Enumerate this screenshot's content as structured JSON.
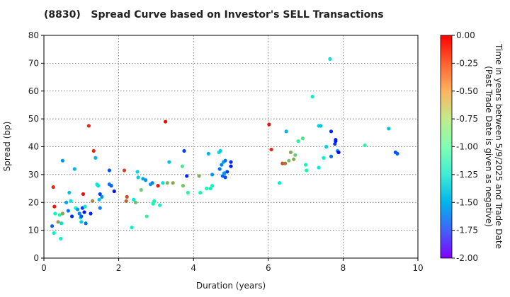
{
  "chart_data": {
    "type": "scatter",
    "title": "(8830)   Spread Curve based on Investor's SELL Transactions",
    "xlabel": "Duration (years)",
    "ylabel": "Spread (bp)",
    "xlim": [
      0,
      10
    ],
    "ylim": [
      0,
      80
    ],
    "x_ticks": [
      0,
      2,
      4,
      6,
      8,
      10
    ],
    "y_ticks": [
      0,
      10,
      20,
      30,
      40,
      50,
      60,
      70,
      80
    ],
    "grid": true,
    "colorbar": {
      "label_line1": "Time in years between 5/9/2025 and Trade Date",
      "label_line2": "(Past Trade Date is given as negative)",
      "min": -2.0,
      "max": 0.0,
      "ticks": [
        "0.00",
        "-0.25",
        "-0.50",
        "-0.75",
        "-1.00",
        "-1.25",
        "-1.50",
        "-1.75",
        "-2.00"
      ],
      "tick_values": [
        0,
        -0.25,
        -0.5,
        -0.75,
        -1.0,
        -1.25,
        -1.5,
        -1.75,
        -2.0
      ],
      "colormap": "rainbow"
    },
    "points": [
      {
        "x": 0.22,
        "y": 11.5,
        "c": -1.75
      },
      {
        "x": 0.25,
        "y": 25.5,
        "c": -0.1
      },
      {
        "x": 0.27,
        "y": 9,
        "c": -1.2
      },
      {
        "x": 0.28,
        "y": 18.5,
        "c": -0.05
      },
      {
        "x": 0.3,
        "y": 16,
        "c": -1.05
      },
      {
        "x": 0.38,
        "y": 13,
        "c": -0.4
      },
      {
        "x": 0.42,
        "y": 15.5,
        "c": -0.9
      },
      {
        "x": 0.45,
        "y": 7,
        "c": -1.2
      },
      {
        "x": 0.47,
        "y": 12.5,
        "c": -1.3
      },
      {
        "x": 0.5,
        "y": 16,
        "c": -0.45
      },
      {
        "x": 0.5,
        "y": 35,
        "c": -1.6
      },
      {
        "x": 0.6,
        "y": 20,
        "c": -1.55
      },
      {
        "x": 0.65,
        "y": 17,
        "c": -1.7
      },
      {
        "x": 0.68,
        "y": 23.5,
        "c": -1.45
      },
      {
        "x": 0.72,
        "y": 20.5,
        "c": -1.3
      },
      {
        "x": 0.75,
        "y": 15,
        "c": -1.9
      },
      {
        "x": 0.82,
        "y": 32,
        "c": -1.5
      },
      {
        "x": 0.85,
        "y": 18,
        "c": -1.1
      },
      {
        "x": 0.9,
        "y": 17.5,
        "c": -1.6
      },
      {
        "x": 0.95,
        "y": 16,
        "c": -1.65
      },
      {
        "x": 0.98,
        "y": 14.5,
        "c": -1.3
      },
      {
        "x": 1.0,
        "y": 13,
        "c": -1.4
      },
      {
        "x": 1.0,
        "y": 15,
        "c": -1.8
      },
      {
        "x": 1.03,
        "y": 18,
        "c": -1.85
      },
      {
        "x": 1.05,
        "y": 23,
        "c": 0.0
      },
      {
        "x": 1.08,
        "y": 16.5,
        "c": -1.95
      },
      {
        "x": 1.1,
        "y": 18.5,
        "c": -1.25
      },
      {
        "x": 1.12,
        "y": 12.5,
        "c": -1.7
      },
      {
        "x": 1.2,
        "y": 47.5,
        "c": -0.1
      },
      {
        "x": 1.25,
        "y": 16,
        "c": -1.9
      },
      {
        "x": 1.3,
        "y": 20.5,
        "c": -0.35
      },
      {
        "x": 1.33,
        "y": 38.5,
        "c": -0.08
      },
      {
        "x": 1.38,
        "y": 36,
        "c": -1.5
      },
      {
        "x": 1.42,
        "y": 26.5,
        "c": -1.2
      },
      {
        "x": 1.45,
        "y": 26,
        "c": -1.3
      },
      {
        "x": 1.48,
        "y": 21,
        "c": -1.45
      },
      {
        "x": 1.5,
        "y": 23,
        "c": -1.85
      },
      {
        "x": 1.5,
        "y": 18,
        "c": -1.65
      },
      {
        "x": 1.55,
        "y": 22,
        "c": -1.6
      },
      {
        "x": 1.75,
        "y": 31.5,
        "c": -1.8
      },
      {
        "x": 1.75,
        "y": 26.5,
        "c": -1.7
      },
      {
        "x": 1.8,
        "y": 26,
        "c": -1.75
      },
      {
        "x": 1.88,
        "y": 24,
        "c": -1.95
      },
      {
        "x": 2.15,
        "y": 31.5,
        "c": -0.15
      },
      {
        "x": 2.2,
        "y": 20.5,
        "c": -0.25
      },
      {
        "x": 2.22,
        "y": 22,
        "c": -0.2
      },
      {
        "x": 2.35,
        "y": 11,
        "c": -1.15
      },
      {
        "x": 2.4,
        "y": 21,
        "c": -1.25
      },
      {
        "x": 2.45,
        "y": 20,
        "c": -0.55
      },
      {
        "x": 2.5,
        "y": 31,
        "c": -1.35
      },
      {
        "x": 2.52,
        "y": 29,
        "c": -1.4
      },
      {
        "x": 2.6,
        "y": 24.5,
        "c": -0.6
      },
      {
        "x": 2.65,
        "y": 28.5,
        "c": -1.55
      },
      {
        "x": 2.72,
        "y": 28,
        "c": -1.6
      },
      {
        "x": 2.75,
        "y": 15,
        "c": -0.8
      },
      {
        "x": 2.85,
        "y": 26.5,
        "c": -1.6
      },
      {
        "x": 2.9,
        "y": 27,
        "c": -1.65
      },
      {
        "x": 2.92,
        "y": 19.5,
        "c": -0.95
      },
      {
        "x": 2.95,
        "y": 20.5,
        "c": -1.0
      },
      {
        "x": 3.05,
        "y": 26,
        "c": -0.05
      },
      {
        "x": 3.1,
        "y": 19,
        "c": -1.15
      },
      {
        "x": 3.18,
        "y": 27,
        "c": -1.3
      },
      {
        "x": 3.25,
        "y": 49,
        "c": 0.0
      },
      {
        "x": 3.3,
        "y": 27,
        "c": -0.5
      },
      {
        "x": 3.35,
        "y": 34.5,
        "c": -1.45
      },
      {
        "x": 3.45,
        "y": 27,
        "c": -0.45
      },
      {
        "x": 3.7,
        "y": 33,
        "c": -0.75
      },
      {
        "x": 3.72,
        "y": 26,
        "c": -0.55
      },
      {
        "x": 3.75,
        "y": 38.5,
        "c": -1.85
      },
      {
        "x": 3.82,
        "y": 29.5,
        "c": -1.9
      },
      {
        "x": 3.85,
        "y": 23.5,
        "c": -0.9
      },
      {
        "x": 4.15,
        "y": 29.5,
        "c": -0.5
      },
      {
        "x": 4.18,
        "y": 23.5,
        "c": -0.95
      },
      {
        "x": 4.35,
        "y": 25,
        "c": -1.1
      },
      {
        "x": 4.4,
        "y": 37.5,
        "c": -1.5
      },
      {
        "x": 4.45,
        "y": 25,
        "c": -1.0
      },
      {
        "x": 4.5,
        "y": 26,
        "c": -1.05
      },
      {
        "x": 4.5,
        "y": 30,
        "c": -1.6
      },
      {
        "x": 4.68,
        "y": 38,
        "c": -1.3
      },
      {
        "x": 4.7,
        "y": 32,
        "c": -1.7
      },
      {
        "x": 4.72,
        "y": 38.5,
        "c": -1.4
      },
      {
        "x": 4.75,
        "y": 33.5,
        "c": -1.65
      },
      {
        "x": 4.78,
        "y": 29.5,
        "c": -1.75
      },
      {
        "x": 4.8,
        "y": 34.5,
        "c": -1.55
      },
      {
        "x": 4.82,
        "y": 30.5,
        "c": -1.6
      },
      {
        "x": 4.85,
        "y": 35,
        "c": -1.7
      },
      {
        "x": 4.85,
        "y": 29,
        "c": -1.8
      },
      {
        "x": 4.9,
        "y": 31,
        "c": -1.85
      },
      {
        "x": 5.0,
        "y": 34.5,
        "c": -1.9
      },
      {
        "x": 5.0,
        "y": 33,
        "c": -1.95
      },
      {
        "x": 6.02,
        "y": 48,
        "c": -0.05
      },
      {
        "x": 6.08,
        "y": 39,
        "c": -0.1
      },
      {
        "x": 6.3,
        "y": 27,
        "c": -1.25
      },
      {
        "x": 6.38,
        "y": 34,
        "c": -0.2
      },
      {
        "x": 6.45,
        "y": 34,
        "c": -0.3
      },
      {
        "x": 6.48,
        "y": 45.5,
        "c": -1.5
      },
      {
        "x": 6.55,
        "y": 35,
        "c": -0.55
      },
      {
        "x": 6.6,
        "y": 38,
        "c": -0.45
      },
      {
        "x": 6.68,
        "y": 35.5,
        "c": -0.45
      },
      {
        "x": 6.72,
        "y": 37,
        "c": -0.6
      },
      {
        "x": 6.8,
        "y": 42,
        "c": -0.85
      },
      {
        "x": 6.92,
        "y": 43,
        "c": -0.7
      },
      {
        "x": 7.0,
        "y": 33.5,
        "c": -1.0
      },
      {
        "x": 7.02,
        "y": 31.5,
        "c": -0.95
      },
      {
        "x": 7.18,
        "y": 58,
        "c": -1.2
      },
      {
        "x": 7.35,
        "y": 32.5,
        "c": -1.2
      },
      {
        "x": 7.35,
        "y": 47.5,
        "c": -1.35
      },
      {
        "x": 7.4,
        "y": 47.5,
        "c": -1.45
      },
      {
        "x": 7.48,
        "y": 36,
        "c": -1.2
      },
      {
        "x": 7.55,
        "y": 40,
        "c": -1.4
      },
      {
        "x": 7.65,
        "y": 71.5,
        "c": -1.3
      },
      {
        "x": 7.68,
        "y": 45.5,
        "c": -1.9
      },
      {
        "x": 7.68,
        "y": 36.5,
        "c": -1.7
      },
      {
        "x": 7.78,
        "y": 41,
        "c": -1.85
      },
      {
        "x": 7.8,
        "y": 42.5,
        "c": -1.9
      },
      {
        "x": 7.8,
        "y": 42,
        "c": -1.95
      },
      {
        "x": 7.85,
        "y": 38.5,
        "c": -1.6
      },
      {
        "x": 7.88,
        "y": 38,
        "c": -2.0
      },
      {
        "x": 8.58,
        "y": 40.5,
        "c": -0.85
      },
      {
        "x": 9.22,
        "y": 46.5,
        "c": -1.45
      },
      {
        "x": 9.4,
        "y": 38,
        "c": -1.8
      },
      {
        "x": 9.45,
        "y": 37.5,
        "c": -1.75
      }
    ]
  }
}
